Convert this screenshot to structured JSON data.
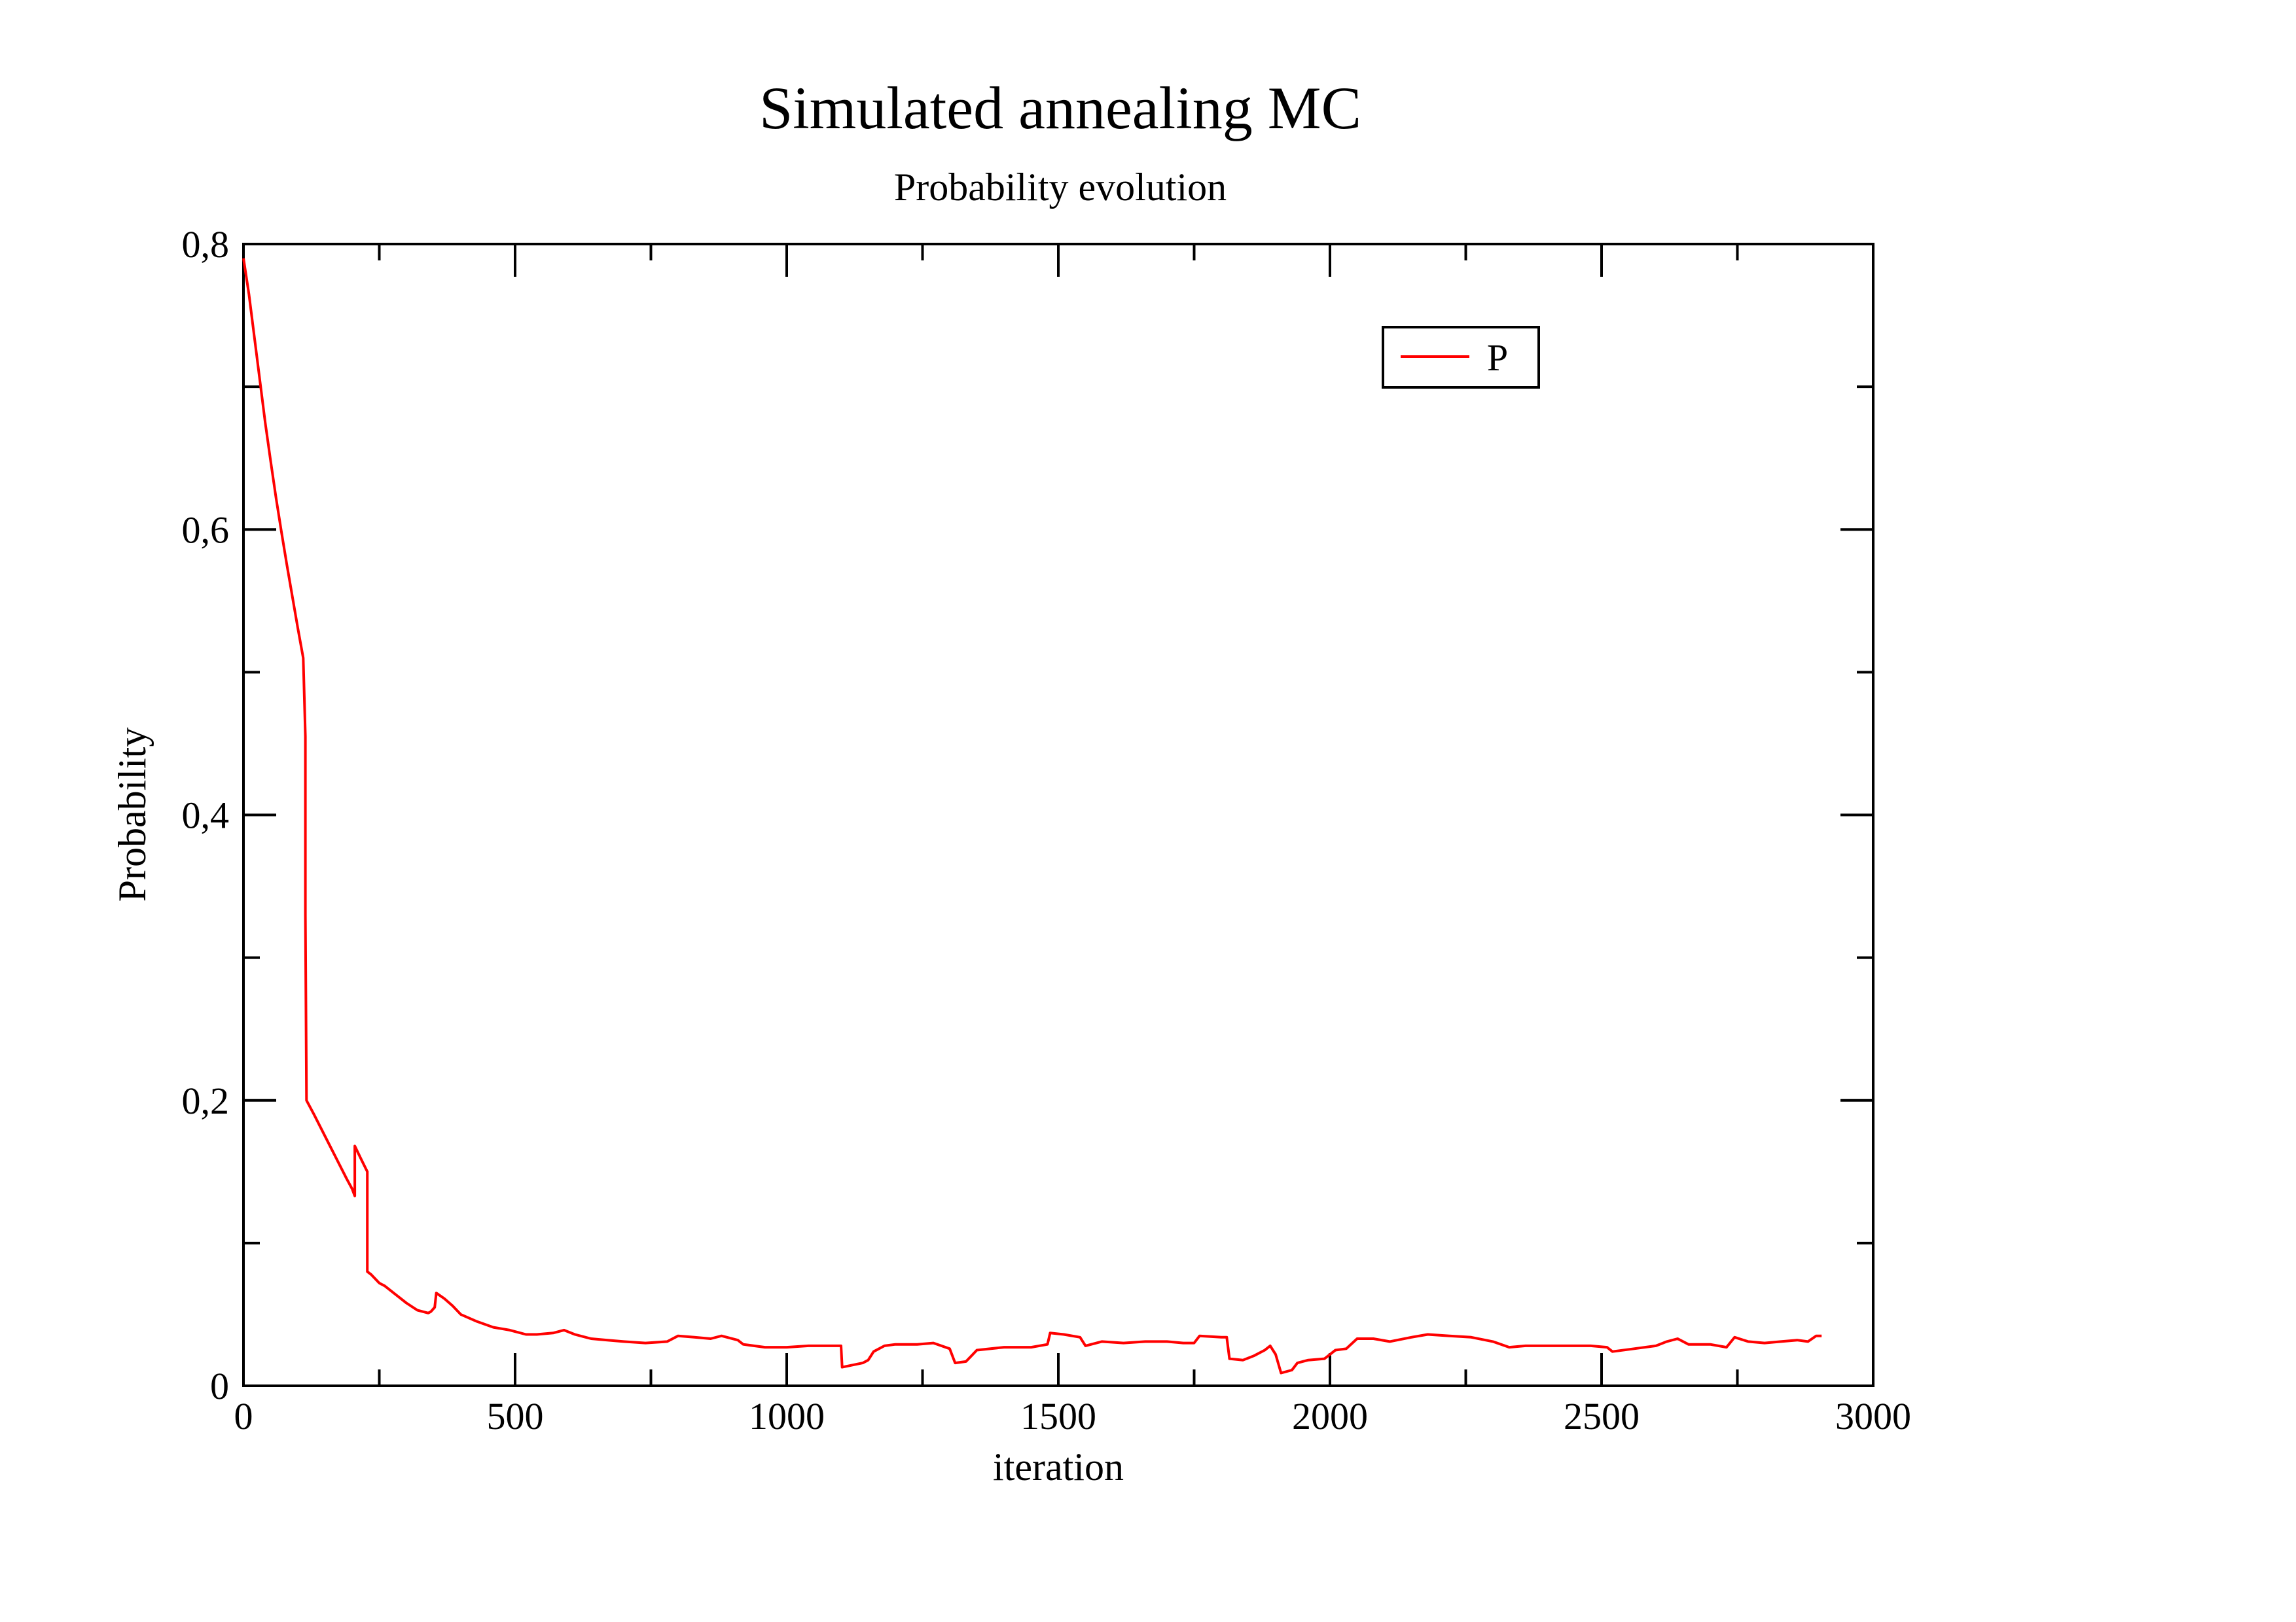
{
  "chart_data": {
    "type": "line",
    "title": "Simulated annealing MC",
    "subtitle": "Probability evolution",
    "xlabel": "iteration",
    "ylabel": "Probability",
    "xlim": [
      0,
      3000
    ],
    "ylim": [
      0,
      0.8
    ],
    "x_ticks": [
      0,
      500,
      1000,
      1500,
      2000,
      2500,
      3000
    ],
    "x_tick_labels": [
      "0",
      "500",
      "1000",
      "1500",
      "2000",
      "2500",
      "3000"
    ],
    "x_minor_step": 250,
    "y_ticks": [
      0,
      0.2,
      0.4,
      0.6,
      0.8
    ],
    "y_tick_labels": [
      "0",
      "0,2",
      "0,4",
      "0,6",
      "0,8"
    ],
    "y_minor_step": 0.1,
    "grid": false,
    "legend_position": "top-right",
    "series": [
      {
        "name": "P",
        "color": "#ff0000",
        "points": [
          [
            0,
            0.79
          ],
          [
            10,
            0.765
          ],
          [
            20,
            0.735
          ],
          [
            30,
            0.705
          ],
          [
            40,
            0.675
          ],
          [
            50,
            0.648
          ],
          [
            60,
            0.622
          ],
          [
            70,
            0.598
          ],
          [
            80,
            0.575
          ],
          [
            90,
            0.553
          ],
          [
            100,
            0.531
          ],
          [
            110,
            0.51
          ],
          [
            114,
            0.455
          ],
          [
            114,
            0.33
          ],
          [
            116,
            0.2
          ],
          [
            130,
            0.19
          ],
          [
            150,
            0.175
          ],
          [
            170,
            0.16
          ],
          [
            190,
            0.145
          ],
          [
            200,
            0.138
          ],
          [
            205,
            0.133
          ],
          [
            205,
            0.168
          ],
          [
            215,
            0.16
          ],
          [
            228,
            0.15
          ],
          [
            228,
            0.08
          ],
          [
            235,
            0.078
          ],
          [
            250,
            0.072
          ],
          [
            260,
            0.07
          ],
          [
            280,
            0.064
          ],
          [
            300,
            0.058
          ],
          [
            320,
            0.053
          ],
          [
            340,
            0.051
          ],
          [
            345,
            0.052
          ],
          [
            352,
            0.055
          ],
          [
            355,
            0.065
          ],
          [
            370,
            0.061
          ],
          [
            385,
            0.056
          ],
          [
            400,
            0.05
          ],
          [
            430,
            0.045
          ],
          [
            460,
            0.041
          ],
          [
            490,
            0.039
          ],
          [
            520,
            0.036
          ],
          [
            540,
            0.036
          ],
          [
            570,
            0.037
          ],
          [
            590,
            0.039
          ],
          [
            610,
            0.036
          ],
          [
            640,
            0.033
          ],
          [
            670,
            0.032
          ],
          [
            700,
            0.031
          ],
          [
            740,
            0.03
          ],
          [
            780,
            0.031
          ],
          [
            800,
            0.035
          ],
          [
            830,
            0.034
          ],
          [
            860,
            0.033
          ],
          [
            880,
            0.035
          ],
          [
            910,
            0.032
          ],
          [
            920,
            0.029
          ],
          [
            960,
            0.027
          ],
          [
            1000,
            0.027
          ],
          [
            1040,
            0.028
          ],
          [
            1060,
            0.028
          ],
          [
            1100,
            0.028
          ],
          [
            1102,
            0.013
          ],
          [
            1140,
            0.016
          ],
          [
            1150,
            0.018
          ],
          [
            1160,
            0.024
          ],
          [
            1180,
            0.028
          ],
          [
            1200,
            0.029
          ],
          [
            1240,
            0.029
          ],
          [
            1270,
            0.03
          ],
          [
            1300,
            0.026
          ],
          [
            1310,
            0.016
          ],
          [
            1330,
            0.017
          ],
          [
            1340,
            0.021
          ],
          [
            1350,
            0.025
          ],
          [
            1400,
            0.027
          ],
          [
            1450,
            0.027
          ],
          [
            1480,
            0.029
          ],
          [
            1485,
            0.037
          ],
          [
            1510,
            0.036
          ],
          [
            1540,
            0.034
          ],
          [
            1550,
            0.028
          ],
          [
            1580,
            0.031
          ],
          [
            1620,
            0.03
          ],
          [
            1660,
            0.031
          ],
          [
            1700,
            0.031
          ],
          [
            1730,
            0.03
          ],
          [
            1750,
            0.03
          ],
          [
            1760,
            0.035
          ],
          [
            1800,
            0.034
          ],
          [
            1810,
            0.034
          ],
          [
            1815,
            0.019
          ],
          [
            1840,
            0.018
          ],
          [
            1860,
            0.021
          ],
          [
            1880,
            0.025
          ],
          [
            1890,
            0.028
          ],
          [
            1900,
            0.022
          ],
          [
            1910,
            0.009
          ],
          [
            1930,
            0.011
          ],
          [
            1940,
            0.016
          ],
          [
            1960,
            0.018
          ],
          [
            1990,
            0.019
          ],
          [
            2010,
            0.025
          ],
          [
            2030,
            0.026
          ],
          [
            2050,
            0.033
          ],
          [
            2080,
            0.033
          ],
          [
            2110,
            0.031
          ],
          [
            2150,
            0.034
          ],
          [
            2180,
            0.036
          ],
          [
            2220,
            0.035
          ],
          [
            2260,
            0.034
          ],
          [
            2300,
            0.031
          ],
          [
            2330,
            0.027
          ],
          [
            2360,
            0.028
          ],
          [
            2400,
            0.028
          ],
          [
            2440,
            0.028
          ],
          [
            2480,
            0.028
          ],
          [
            2510,
            0.027
          ],
          [
            2520,
            0.024
          ],
          [
            2560,
            0.026
          ],
          [
            2600,
            0.028
          ],
          [
            2620,
            0.031
          ],
          [
            2640,
            0.033
          ],
          [
            2660,
            0.029
          ],
          [
            2700,
            0.029
          ],
          [
            2730,
            0.027
          ],
          [
            2745,
            0.034
          ],
          [
            2770,
            0.031
          ],
          [
            2800,
            0.03
          ],
          [
            2830,
            0.031
          ],
          [
            2860,
            0.032
          ],
          [
            2880,
            0.031
          ],
          [
            2895,
            0.035
          ],
          [
            2905,
            0.035
          ]
        ]
      }
    ]
  }
}
